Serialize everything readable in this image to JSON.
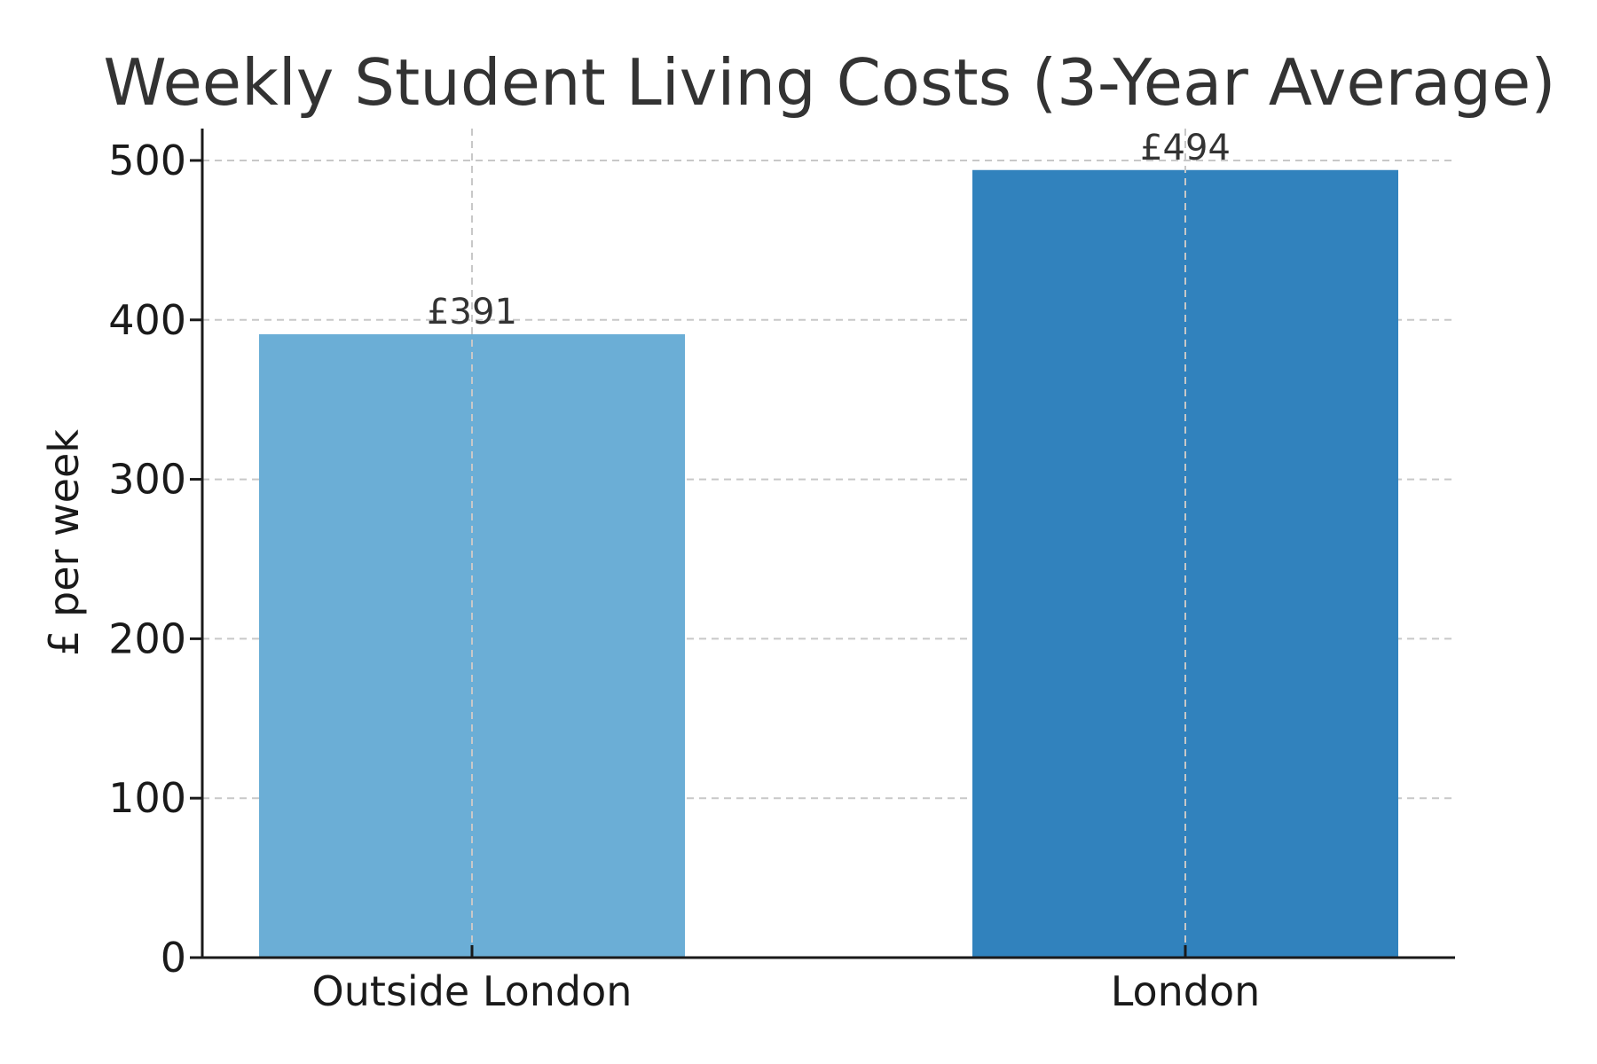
{
  "chart_data": {
    "type": "bar",
    "title": "Weekly Student Living Costs (3-Year Average)",
    "xlabel": "",
    "ylabel": "£ per week",
    "categories": [
      "Outside London",
      "London"
    ],
    "values": [
      391,
      494
    ],
    "value_labels": [
      "£391",
      "£494"
    ],
    "colors": [
      "#6baed6",
      "#3182bd"
    ],
    "ylim": [
      0,
      520
    ],
    "yticks": [
      0,
      100,
      200,
      300,
      400,
      500
    ],
    "grid": true,
    "legend": "none"
  }
}
